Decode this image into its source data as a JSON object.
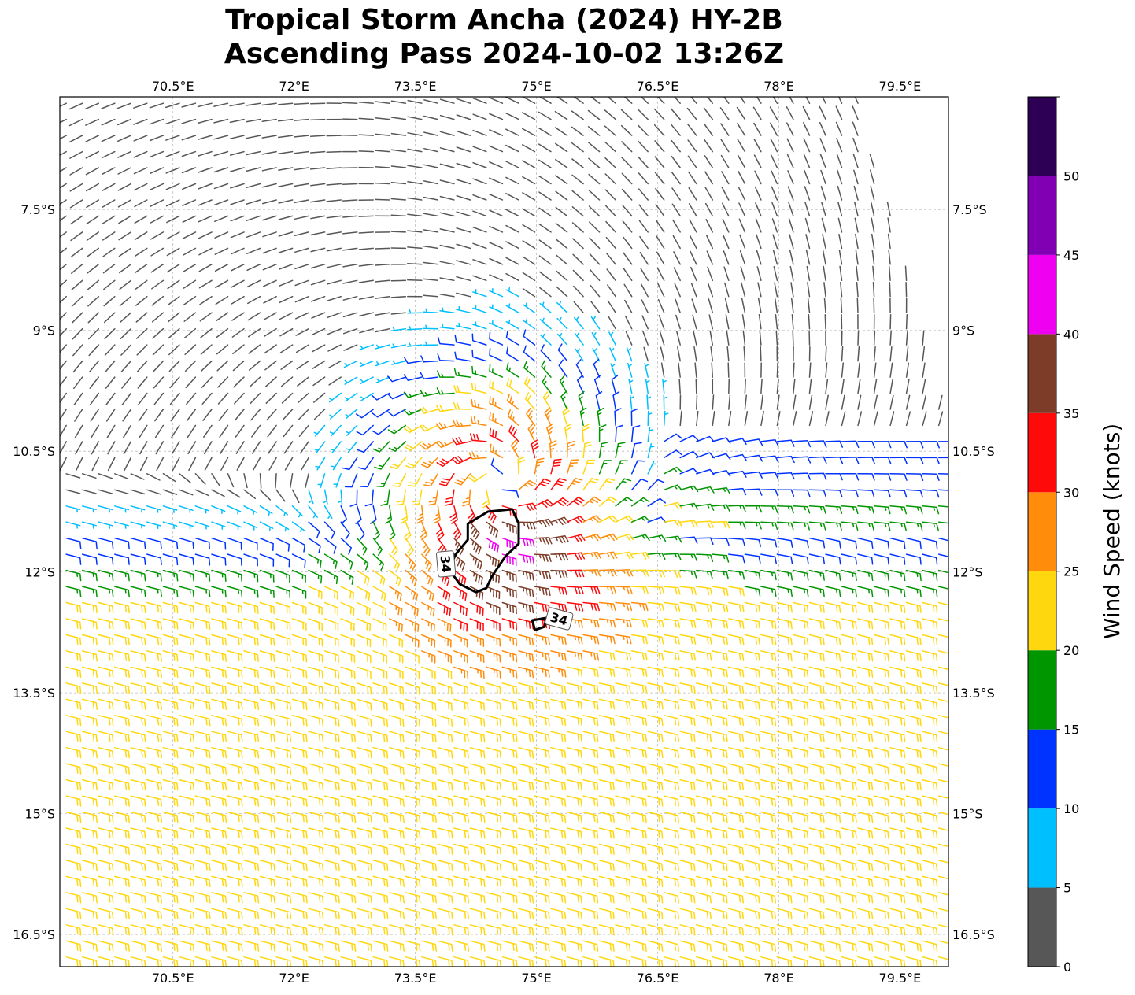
{
  "title": {
    "line1": "Tropical Storm Ancha (2024) HY-2B",
    "line2": "Ascending Pass 2024-10-02 13:26Z"
  },
  "map": {
    "lon_range": [
      69.1,
      80.1
    ],
    "lat_range": [
      -16.9,
      -6.1
    ],
    "lon_ticks": [
      {
        "value": 70.5,
        "label": "70.5°E"
      },
      {
        "value": 72.0,
        "label": "72°E"
      },
      {
        "value": 73.5,
        "label": "73.5°E"
      },
      {
        "value": 75.0,
        "label": "75°E"
      },
      {
        "value": 76.5,
        "label": "76.5°E"
      },
      {
        "value": 78.0,
        "label": "78°E"
      },
      {
        "value": 79.5,
        "label": "79.5°E"
      }
    ],
    "lat_ticks": [
      {
        "value": -7.5,
        "label": "7.5°S"
      },
      {
        "value": -9.0,
        "label": "9°S"
      },
      {
        "value": -10.5,
        "label": "10.5°S"
      },
      {
        "value": -12.0,
        "label": "12°S"
      },
      {
        "value": -13.5,
        "label": "13.5°S"
      },
      {
        "value": -15.0,
        "label": "15°S"
      },
      {
        "value": -16.5,
        "label": "16.5°S"
      }
    ],
    "gridlines": true,
    "storm_center": {
      "lon": 74.55,
      "lat": -10.9
    },
    "barb_spacing_deg": 0.2,
    "contour_34kt": {
      "level_label": "34",
      "main": [
        [
          74.15,
          -11.4
        ],
        [
          74.4,
          -11.25
        ],
        [
          74.7,
          -11.22
        ],
        [
          74.78,
          -11.4
        ],
        [
          74.78,
          -11.65
        ],
        [
          74.62,
          -11.8
        ],
        [
          74.45,
          -12.05
        ],
        [
          74.38,
          -12.2
        ],
        [
          74.25,
          -12.25
        ],
        [
          74.05,
          -12.15
        ],
        [
          73.92,
          -11.97
        ],
        [
          74.0,
          -11.78
        ],
        [
          74.15,
          -11.6
        ],
        [
          74.15,
          -11.4
        ]
      ],
      "small": [
        [
          74.95,
          -12.6
        ],
        [
          75.12,
          -12.57
        ],
        [
          75.1,
          -12.68
        ],
        [
          74.98,
          -12.72
        ],
        [
          74.95,
          -12.6
        ]
      ],
      "label_positions": [
        {
          "lon": 73.88,
          "lat": -11.9,
          "rotate": 85
        },
        {
          "lon": 75.28,
          "lat": -12.58,
          "rotate": 15
        }
      ]
    }
  },
  "colorbar": {
    "label": "Wind Speed (knots)",
    "bins": [
      {
        "from": 0,
        "to": 5,
        "color": "#575757"
      },
      {
        "from": 5,
        "to": 10,
        "color": "#00bfff"
      },
      {
        "from": 10,
        "to": 15,
        "color": "#0033ff"
      },
      {
        "from": 15,
        "to": 20,
        "color": "#009600"
      },
      {
        "from": 20,
        "to": 25,
        "color": "#ffd70f"
      },
      {
        "from": 25,
        "to": 30,
        "color": "#ff8c0a"
      },
      {
        "from": 30,
        "to": 35,
        "color": "#ff0a0a"
      },
      {
        "from": 35,
        "to": 40,
        "color": "#7d3c28"
      },
      {
        "from": 40,
        "to": 45,
        "color": "#f000f0"
      },
      {
        "from": 45,
        "to": 50,
        "color": "#8200b4"
      },
      {
        "from": 50,
        "to": 55,
        "color": "#2d0055"
      }
    ],
    "tick_labels": [
      "0",
      "5",
      "10",
      "15",
      "20",
      "25",
      "30",
      "35",
      "40",
      "45",
      "50"
    ]
  }
}
